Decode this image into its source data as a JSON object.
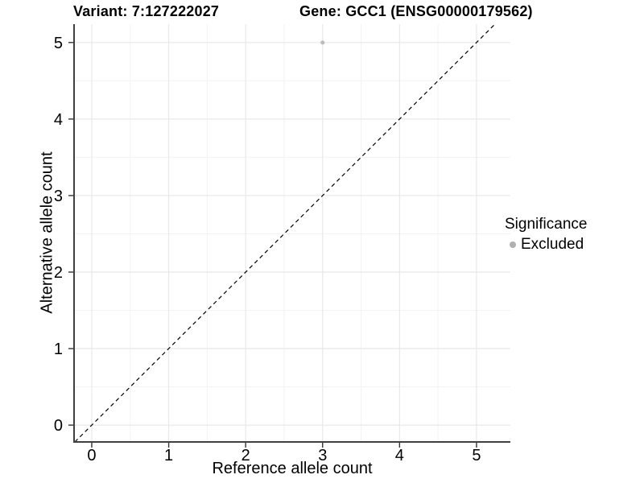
{
  "header": {
    "variant_title": "Variant: 7:127222027",
    "gene_title": "Gene: GCC1 (ENSG00000179562)"
  },
  "chart_data": {
    "type": "scatter",
    "xlabel": "Reference allele count",
    "ylabel": "Alternative allele count",
    "x_ticks": [
      0,
      1,
      2,
      3,
      4,
      5
    ],
    "y_ticks": [
      0,
      1,
      2,
      3,
      4,
      5
    ],
    "xlim": [
      -0.23,
      5.44
    ],
    "ylim": [
      -0.22,
      5.24
    ],
    "grid": true,
    "points": [
      {
        "x": 3,
        "y": 5,
        "series": "Excluded"
      }
    ],
    "reference_line": {
      "kind": "identity",
      "style": "dashed",
      "color": "#000000"
    },
    "legend": {
      "title": "Significance",
      "position": "right",
      "items": [
        {
          "label": "Excluded",
          "color": "#b0b0b0",
          "marker": "circle"
        }
      ]
    },
    "colors": {
      "background": "#ffffff",
      "grid_major": "#e8e8e8",
      "grid_minor": "#f3f3f3",
      "axis": "#404040",
      "tick": "#333333",
      "point": "#bcbcbc",
      "text": "#000000"
    }
  }
}
